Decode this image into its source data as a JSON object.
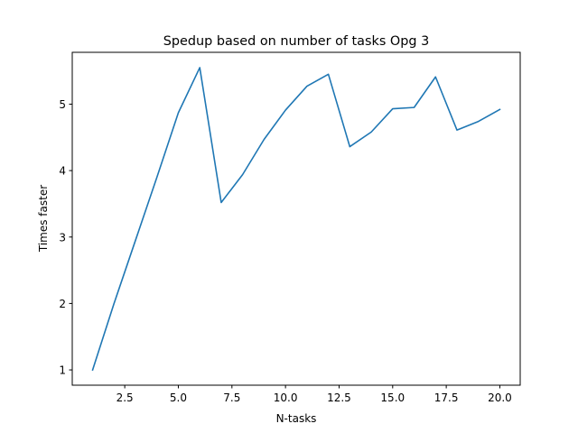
{
  "chart_data": {
    "type": "line",
    "title": "Spedup based on number of tasks Opg 3",
    "xlabel": "N-tasks",
    "ylabel": "Times faster",
    "xlim": [
      0.05,
      20.95
    ],
    "ylim": [
      0.77,
      5.78
    ],
    "xticks": [
      2.5,
      5.0,
      7.5,
      10.0,
      12.5,
      15.0,
      17.5,
      20.0
    ],
    "xtick_labels": [
      "2.5",
      "5.0",
      "7.5",
      "10.0",
      "12.5",
      "15.0",
      "17.5",
      "20.0"
    ],
    "yticks": [
      1,
      2,
      3,
      4,
      5
    ],
    "ytick_labels": [
      "1",
      "2",
      "3",
      "4",
      "5"
    ],
    "grid": false,
    "series": [
      {
        "color": "#1f77b4",
        "x": [
          1,
          2,
          3,
          4,
          5,
          6,
          7,
          8,
          9,
          10,
          11,
          12,
          13,
          14,
          15,
          16,
          17,
          18,
          19,
          20
        ],
        "y": [
          1.0,
          2.0,
          2.95,
          3.9,
          4.87,
          5.55,
          3.52,
          3.94,
          4.47,
          4.91,
          5.27,
          5.45,
          4.36,
          4.58,
          4.93,
          4.95,
          5.41,
          4.61,
          4.74,
          4.92
        ]
      }
    ]
  }
}
